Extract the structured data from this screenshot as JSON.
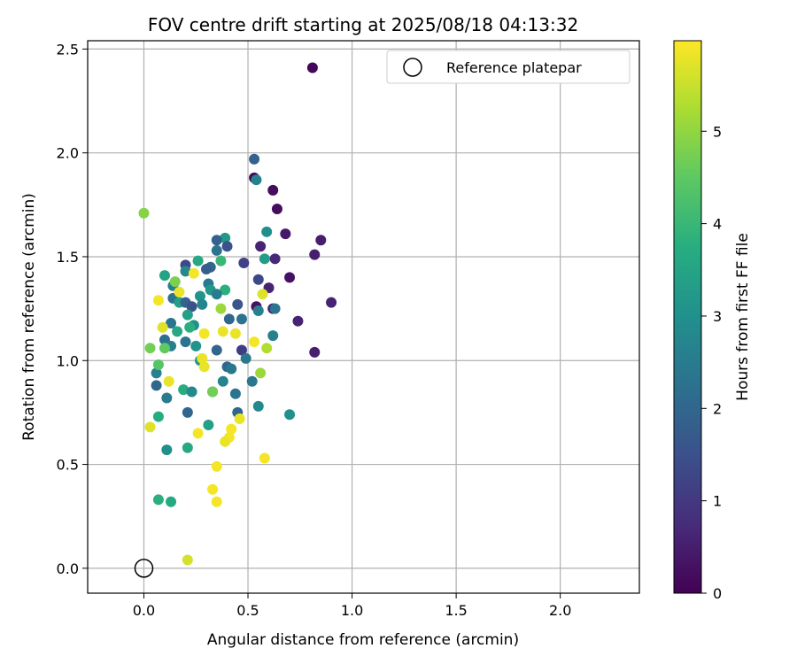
{
  "chart_data": {
    "type": "scatter",
    "title": "FOV centre drift starting at 2025/08/18 04:13:32",
    "xlabel": "Angular distance from reference (arcmin)",
    "ylabel": "Rotation from reference (arcmin)",
    "xlim": [
      -0.27,
      2.38
    ],
    "ylim": [
      -0.12,
      2.54
    ],
    "xticks": [
      0.0,
      0.5,
      1.0,
      1.5,
      2.0
    ],
    "yticks": [
      0.0,
      0.5,
      1.0,
      1.5,
      2.0,
      2.5
    ],
    "grid": true,
    "legend": {
      "placement": "top-right",
      "entries": [
        "Reference platepar"
      ]
    },
    "colorbar": {
      "label": "Hours from first FF file",
      "range": [
        0,
        5.98
      ],
      "ticks": [
        0,
        1,
        2,
        3,
        4,
        5
      ],
      "colormap": "viridis"
    },
    "reference": {
      "x": 0.0,
      "y": 0.0
    },
    "points": [
      {
        "x": 0.81,
        "y": 2.41,
        "c": 0.1
      },
      {
        "x": 0.53,
        "y": 1.88,
        "c": 0.1
      },
      {
        "x": 0.62,
        "y": 1.82,
        "c": 0.2
      },
      {
        "x": 0.64,
        "y": 1.73,
        "c": 0.2
      },
      {
        "x": 0.68,
        "y": 1.61,
        "c": 0.4
      },
      {
        "x": 0.85,
        "y": 1.58,
        "c": 0.5
      },
      {
        "x": 0.56,
        "y": 1.55,
        "c": 0.6
      },
      {
        "x": 0.82,
        "y": 1.51,
        "c": 0.5
      },
      {
        "x": 0.63,
        "y": 1.49,
        "c": 0.7
      },
      {
        "x": 0.7,
        "y": 1.4,
        "c": 0.3
      },
      {
        "x": 0.6,
        "y": 1.35,
        "c": 0.6
      },
      {
        "x": 0.9,
        "y": 1.28,
        "c": 0.6
      },
      {
        "x": 0.54,
        "y": 1.26,
        "c": 0.3
      },
      {
        "x": 0.62,
        "y": 1.25,
        "c": 0.5
      },
      {
        "x": 0.74,
        "y": 1.19,
        "c": 0.6
      },
      {
        "x": 0.82,
        "y": 1.04,
        "c": 0.5
      },
      {
        "x": 0.53,
        "y": 1.97,
        "c": 1.9
      },
      {
        "x": 0.54,
        "y": 1.87,
        "c": 2.6
      },
      {
        "x": 0.39,
        "y": 1.59,
        "c": 3.2
      },
      {
        "x": 0.35,
        "y": 1.58,
        "c": 1.9
      },
      {
        "x": 0.4,
        "y": 1.55,
        "c": 1.5
      },
      {
        "x": 0.35,
        "y": 1.53,
        "c": 2.3
      },
      {
        "x": 0.59,
        "y": 1.62,
        "c": 3.0
      },
      {
        "x": 0.58,
        "y": 1.49,
        "c": 3.3
      },
      {
        "x": 0.48,
        "y": 1.47,
        "c": 1.2
      },
      {
        "x": 0.37,
        "y": 1.48,
        "c": 4.0
      },
      {
        "x": 0.26,
        "y": 1.48,
        "c": 3.6
      },
      {
        "x": 0.2,
        "y": 1.46,
        "c": 1.3
      },
      {
        "x": 0.32,
        "y": 1.45,
        "c": 2.0
      },
      {
        "x": 0.3,
        "y": 1.44,
        "c": 1.8
      },
      {
        "x": 0.2,
        "y": 1.43,
        "c": 2.8
      },
      {
        "x": 0.1,
        "y": 1.41,
        "c": 3.5
      },
      {
        "x": 0.31,
        "y": 1.37,
        "c": 2.5
      },
      {
        "x": 0.55,
        "y": 1.39,
        "c": 1.3
      },
      {
        "x": 0.14,
        "y": 1.36,
        "c": 2.5
      },
      {
        "x": 0.32,
        "y": 1.34,
        "c": 3.2
      },
      {
        "x": 0.39,
        "y": 1.34,
        "c": 3.8
      },
      {
        "x": 0.35,
        "y": 1.32,
        "c": 2.5
      },
      {
        "x": 0.27,
        "y": 1.31,
        "c": 3.1
      },
      {
        "x": 0.14,
        "y": 1.3,
        "c": 2.3
      },
      {
        "x": 0.17,
        "y": 1.28,
        "c": 3.4
      },
      {
        "x": 0.2,
        "y": 1.28,
        "c": 1.9
      },
      {
        "x": 0.28,
        "y": 1.27,
        "c": 2.7
      },
      {
        "x": 0.45,
        "y": 1.27,
        "c": 1.6
      },
      {
        "x": 0.23,
        "y": 1.26,
        "c": 1.5
      },
      {
        "x": 0.55,
        "y": 1.24,
        "c": 2.6
      },
      {
        "x": 0.63,
        "y": 1.25,
        "c": 2.3
      },
      {
        "x": 0.41,
        "y": 1.2,
        "c": 2.0
      },
      {
        "x": 0.47,
        "y": 1.2,
        "c": 2.3
      },
      {
        "x": 0.21,
        "y": 1.22,
        "c": 3.4
      },
      {
        "x": 0.13,
        "y": 1.18,
        "c": 2.3
      },
      {
        "x": 0.24,
        "y": 1.17,
        "c": 3.0
      },
      {
        "x": 0.22,
        "y": 1.16,
        "c": 3.8
      },
      {
        "x": 0.16,
        "y": 1.14,
        "c": 3.6
      },
      {
        "x": 0.62,
        "y": 1.12,
        "c": 2.6
      },
      {
        "x": 0.1,
        "y": 1.1,
        "c": 2.2
      },
      {
        "x": 0.2,
        "y": 1.09,
        "c": 2.3
      },
      {
        "x": 0.13,
        "y": 1.07,
        "c": 2.6
      },
      {
        "x": 0.25,
        "y": 1.07,
        "c": 3.1
      },
      {
        "x": 0.35,
        "y": 1.05,
        "c": 2.0
      },
      {
        "x": 0.47,
        "y": 1.05,
        "c": 1.1
      },
      {
        "x": 0.49,
        "y": 1.01,
        "c": 2.4
      },
      {
        "x": 0.27,
        "y": 1.0,
        "c": 3.2
      },
      {
        "x": 0.4,
        "y": 0.97,
        "c": 2.0
      },
      {
        "x": 0.42,
        "y": 0.96,
        "c": 2.4
      },
      {
        "x": 0.06,
        "y": 0.94,
        "c": 2.6
      },
      {
        "x": 0.38,
        "y": 0.9,
        "c": 2.7
      },
      {
        "x": 0.52,
        "y": 0.9,
        "c": 2.4
      },
      {
        "x": 0.06,
        "y": 0.88,
        "c": 2.0
      },
      {
        "x": 0.19,
        "y": 0.86,
        "c": 3.7
      },
      {
        "x": 0.23,
        "y": 0.85,
        "c": 2.8
      },
      {
        "x": 0.33,
        "y": 0.85,
        "c": 3.2
      },
      {
        "x": 0.44,
        "y": 0.84,
        "c": 2.3
      },
      {
        "x": 0.11,
        "y": 0.82,
        "c": 2.5
      },
      {
        "x": 0.55,
        "y": 0.78,
        "c": 2.8
      },
      {
        "x": 0.21,
        "y": 0.75,
        "c": 2.0
      },
      {
        "x": 0.45,
        "y": 0.75,
        "c": 2.0
      },
      {
        "x": 0.7,
        "y": 0.74,
        "c": 3.0
      },
      {
        "x": 0.07,
        "y": 0.73,
        "c": 3.7
      },
      {
        "x": 0.31,
        "y": 0.69,
        "c": 3.4
      },
      {
        "x": 0.11,
        "y": 0.57,
        "c": 3.0
      },
      {
        "x": 0.21,
        "y": 0.58,
        "c": 3.6
      },
      {
        "x": 0.07,
        "y": 0.33,
        "c": 3.8
      },
      {
        "x": 0.13,
        "y": 0.32,
        "c": 3.6
      },
      {
        "x": 0.07,
        "y": 0.98,
        "c": 4.4
      },
      {
        "x": 0.0,
        "y": 1.71,
        "c": 4.9
      },
      {
        "x": 0.15,
        "y": 1.38,
        "c": 4.8
      },
      {
        "x": 0.03,
        "y": 1.06,
        "c": 4.7
      },
      {
        "x": 0.1,
        "y": 1.06,
        "c": 4.5
      },
      {
        "x": 0.37,
        "y": 1.25,
        "c": 5.1
      },
      {
        "x": 0.59,
        "y": 1.06,
        "c": 5.3
      },
      {
        "x": 0.56,
        "y": 0.94,
        "c": 5.1
      },
      {
        "x": 0.33,
        "y": 0.85,
        "c": 4.7
      },
      {
        "x": 0.24,
        "y": 1.42,
        "c": 5.9
      },
      {
        "x": 0.17,
        "y": 1.33,
        "c": 5.8
      },
      {
        "x": 0.07,
        "y": 1.29,
        "c": 5.9
      },
      {
        "x": 0.57,
        "y": 1.32,
        "c": 5.7
      },
      {
        "x": 0.09,
        "y": 1.16,
        "c": 5.7
      },
      {
        "x": 0.29,
        "y": 1.13,
        "c": 5.9
      },
      {
        "x": 0.38,
        "y": 1.14,
        "c": 5.8
      },
      {
        "x": 0.44,
        "y": 1.13,
        "c": 5.8
      },
      {
        "x": 0.53,
        "y": 1.09,
        "c": 5.9
      },
      {
        "x": 0.28,
        "y": 1.01,
        "c": 5.8
      },
      {
        "x": 0.29,
        "y": 0.97,
        "c": 5.8
      },
      {
        "x": 0.12,
        "y": 0.9,
        "c": 5.8
      },
      {
        "x": 0.46,
        "y": 0.72,
        "c": 5.8
      },
      {
        "x": 0.03,
        "y": 0.68,
        "c": 5.7
      },
      {
        "x": 0.42,
        "y": 0.67,
        "c": 5.9
      },
      {
        "x": 0.26,
        "y": 0.65,
        "c": 5.9
      },
      {
        "x": 0.41,
        "y": 0.63,
        "c": 5.9
      },
      {
        "x": 0.39,
        "y": 0.61,
        "c": 5.8
      },
      {
        "x": 0.58,
        "y": 0.53,
        "c": 5.9
      },
      {
        "x": 0.35,
        "y": 0.49,
        "c": 5.9
      },
      {
        "x": 0.33,
        "y": 0.38,
        "c": 5.9
      },
      {
        "x": 0.35,
        "y": 0.32,
        "c": 5.9
      },
      {
        "x": 0.21,
        "y": 0.04,
        "c": 5.6
      }
    ]
  }
}
